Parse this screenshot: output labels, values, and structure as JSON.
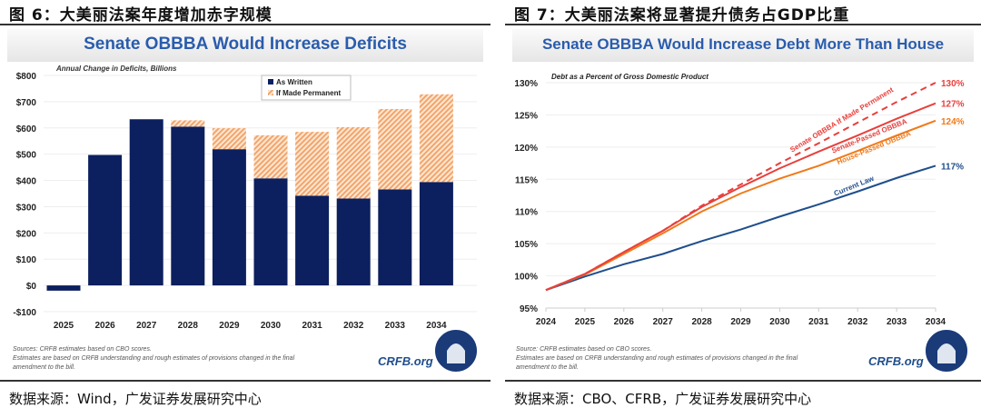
{
  "figures": [
    {
      "header": "图 6：大美丽法案年度增加赤字规模",
      "source": "数据来源：Wind，广发证券发展研究中心"
    },
    {
      "header": "图 7：大美丽法案将显著提升债务占GDP比重",
      "source": "数据来源：CBO、CFRB，广发证券发展研究中心"
    }
  ],
  "chart_data": [
    {
      "type": "bar",
      "stacked": true,
      "title": "Senate OBBBA Would Increase Deficits",
      "subtitle": "Annual Change in Deficits, Billions",
      "categories": [
        "2025",
        "2026",
        "2027",
        "2028",
        "2029",
        "2030",
        "2031",
        "2032",
        "2033",
        "2034"
      ],
      "series": [
        {
          "name": "As Written",
          "color": "#0c1f5e",
          "values": [
            -20,
            497,
            633,
            605,
            519,
            408,
            342,
            331,
            366,
            394
          ]
        },
        {
          "name": "If Made Permanent",
          "color": "#f2a56b",
          "pattern": "hatched",
          "values": [
            0,
            0,
            0,
            24,
            80,
            164,
            243,
            272,
            306,
            334
          ]
        }
      ],
      "ylim": [
        -100,
        800
      ],
      "yticks": [
        -100,
        0,
        100,
        200,
        300,
        400,
        500,
        600,
        700,
        800
      ],
      "ytick_labels": [
        "-$100",
        "$0",
        "$100",
        "$200",
        "$300",
        "$400",
        "$500",
        "$600",
        "$700",
        "$800"
      ],
      "grid": true,
      "legend": "top-center",
      "notes": [
        "Sources: CRFB estimates based on CBO scores.",
        "Estimates are based on CRFB understanding and rough estimates of provisions changed in the final",
        "amendment to the bill."
      ],
      "brand": "CRFB.org"
    },
    {
      "type": "line",
      "title": "Senate OBBBA Would Increase Debt More Than House",
      "subtitle": "Debt as a Percent of Gross Domestic Product",
      "x": [
        "2024",
        "2025",
        "2026",
        "2027",
        "2028",
        "2029",
        "2030",
        "2031",
        "2032",
        "2033",
        "2034"
      ],
      "series": [
        {
          "name": "Senate OBBBA If Made Permanent",
          "color": "#e8403c",
          "dash": true,
          "end_label": "130%",
          "values": [
            97.8,
            100.3,
            103.7,
            107.0,
            110.9,
            114.2,
            117.5,
            120.6,
            123.8,
            127.0,
            130.0
          ]
        },
        {
          "name": "Senate-Passed OBBBA",
          "color": "#e8403c",
          "end_label": "127%",
          "values": [
            97.8,
            100.3,
            103.7,
            107.0,
            110.7,
            113.8,
            116.7,
            119.3,
            121.8,
            124.4,
            126.8
          ]
        },
        {
          "name": "House-Passed OBBBA",
          "color": "#f07a1a",
          "end_label": "124%",
          "values": [
            97.8,
            100.2,
            103.4,
            106.6,
            110.0,
            112.8,
            115.1,
            117.1,
            119.4,
            121.8,
            124.1
          ]
        },
        {
          "name": "Current Law",
          "color": "#1f4e8c",
          "end_label": "117%",
          "values": [
            97.8,
            99.9,
            101.8,
            103.4,
            105.4,
            107.2,
            109.2,
            111.1,
            113.1,
            115.2,
            117.1
          ]
        }
      ],
      "ylim": [
        95,
        130
      ],
      "yticks": [
        95,
        100,
        105,
        110,
        115,
        120,
        125,
        130
      ],
      "ytick_labels": [
        "95%",
        "100%",
        "105%",
        "110%",
        "115%",
        "120%",
        "125%",
        "130%"
      ],
      "grid": true,
      "notes": [
        "Source: CRFB estimates based on CBO scores.",
        "Estimates are based on CRFB understanding and rough estimates of provisions changed in the final",
        "amendment to the bill."
      ],
      "brand": "CRFB.org"
    }
  ]
}
